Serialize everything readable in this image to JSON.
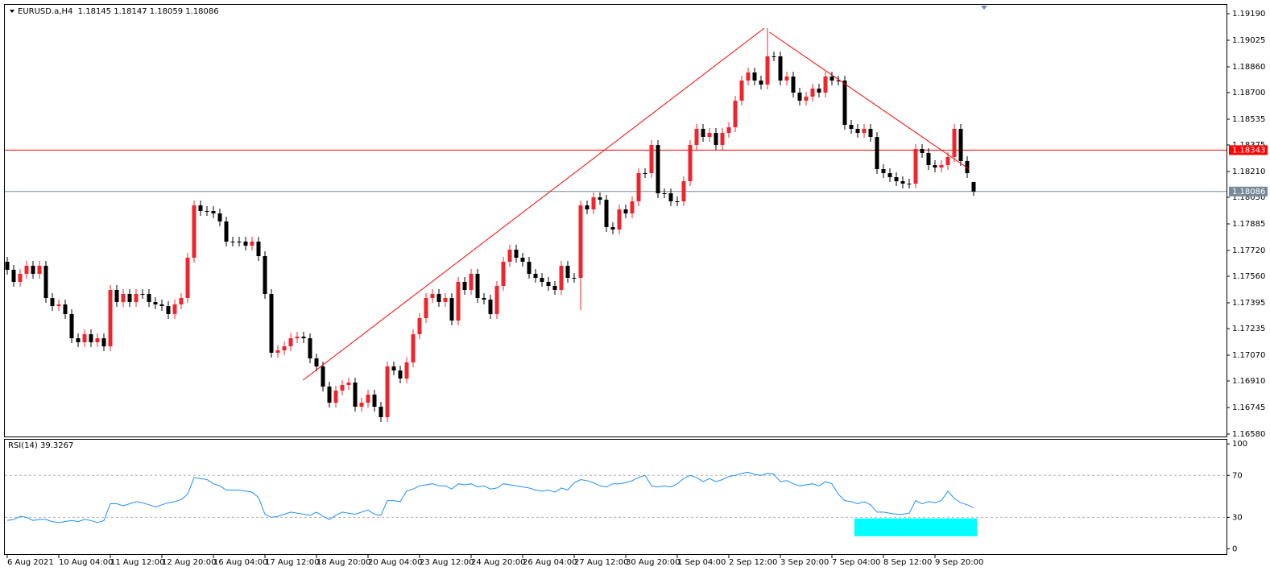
{
  "chart_data": {
    "type": "candlestick",
    "title": "EURUSD.a,H4  1.18145 1.18147 1.18059 1.18086",
    "up_color": "#f0242c",
    "down_color": "#000000",
    "open": [
      1.1765,
      1.176,
      1.17525,
      1.17575,
      1.17625,
      1.17575,
      1.17625,
      1.17425,
      1.17375,
      1.17385,
      1.17325,
      1.17175,
      1.1715,
      1.172,
      1.1715,
      1.17175,
      1.17125,
      1.17475,
      1.174,
      1.1745,
      1.174,
      1.1745,
      1.1745,
      1.174,
      1.17385,
      1.17375,
      1.17325,
      1.17385,
      1.17425,
      1.17675,
      1.18,
      1.17965,
      1.17965,
      1.1795,
      1.179,
      1.17775,
      1.17775,
      1.17775,
      1.1775,
      1.17775,
      1.17685,
      1.1745,
      1.17085,
      1.171,
      1.17125,
      1.17175,
      1.17185,
      1.17175,
      1.1705,
      1.17,
      1.16875,
      1.16775,
      1.1685,
      1.16885,
      1.169,
      1.1675,
      1.16775,
      1.16825,
      1.1675,
      1.16685,
      1.17,
      1.16975,
      1.16925,
      1.17025,
      1.172,
      1.173,
      1.17425,
      1.1745,
      1.174,
      1.17425,
      1.17285,
      1.17525,
      1.17475,
      1.17575,
      1.17425,
      1.17415,
      1.17325,
      1.175,
      1.1765,
      1.17725,
      1.17675,
      1.1765,
      1.17575,
      1.1755,
      1.17525,
      1.175,
      1.17475,
      1.17625,
      1.1755,
      1.1755,
      1.18,
      1.17975,
      1.1805,
      1.18035,
      1.17865,
      1.1785,
      1.17975,
      1.1795,
      1.18025,
      1.182,
      1.182,
      1.18375,
      1.18075,
      1.18075,
      1.18025,
      1.18025,
      1.1815,
      1.18375,
      1.18475,
      1.18425,
      1.1845,
      1.18375,
      1.1845,
      1.18485,
      1.1865,
      1.18775,
      1.18825,
      1.18775,
      1.1875,
      1.18925,
      1.18925,
      1.18775,
      1.188,
      1.187,
      1.1865,
      1.18675,
      1.18725,
      1.187,
      1.188,
      1.18775,
      1.18775,
      1.185,
      1.18475,
      1.1845,
      1.18475,
      1.18425,
      1.18225,
      1.182,
      1.18175,
      1.1815,
      1.18135,
      1.18135,
      1.1835,
      1.18325,
      1.1825,
      1.18235,
      1.1825,
      1.183,
      1.18475,
      1.18275,
      1.18145
    ],
    "high": [
      1.1768,
      1.1763,
      1.17605,
      1.17655,
      1.17655,
      1.17655,
      1.17655,
      1.17455,
      1.17415,
      1.17415,
      1.17355,
      1.17205,
      1.1723,
      1.1723,
      1.17205,
      1.17205,
      1.17505,
      1.17505,
      1.1748,
      1.1748,
      1.1748,
      1.1748,
      1.1748,
      1.1743,
      1.17415,
      1.17405,
      1.17415,
      1.17455,
      1.17705,
      1.1803,
      1.1803,
      1.17995,
      1.17995,
      1.1798,
      1.1793,
      1.17805,
      1.17805,
      1.17805,
      1.17805,
      1.17805,
      1.17715,
      1.1748,
      1.1713,
      1.17155,
      1.17205,
      1.17215,
      1.17215,
      1.17205,
      1.1708,
      1.1703,
      1.16905,
      1.1688,
      1.16915,
      1.1693,
      1.1693,
      1.16805,
      1.16855,
      1.16855,
      1.1678,
      1.1703,
      1.1703,
      1.17005,
      1.17055,
      1.1723,
      1.1733,
      1.17455,
      1.1748,
      1.1748,
      1.17455,
      1.17455,
      1.17555,
      1.17555,
      1.17605,
      1.17605,
      1.17455,
      1.17445,
      1.1753,
      1.1768,
      1.17755,
      1.17755,
      1.17705,
      1.1768,
      1.17605,
      1.1758,
      1.17555,
      1.1753,
      1.17655,
      1.17655,
      1.1758,
      1.1803,
      1.1803,
      1.1808,
      1.1808,
      1.18065,
      1.17895,
      1.18005,
      1.18005,
      1.18055,
      1.1823,
      1.1823,
      1.18405,
      1.18405,
      1.18105,
      1.18105,
      1.18055,
      1.1818,
      1.18405,
      1.18505,
      1.18505,
      1.1848,
      1.1848,
      1.1848,
      1.18515,
      1.1868,
      1.18805,
      1.18855,
      1.18855,
      1.18805,
      1.191,
      1.18955,
      1.18955,
      1.1883,
      1.1883,
      1.1873,
      1.18705,
      1.18755,
      1.18755,
      1.1883,
      1.1883,
      1.18805,
      1.18805,
      1.1853,
      1.18505,
      1.18505,
      1.18505,
      1.18455,
      1.18255,
      1.1823,
      1.18205,
      1.1818,
      1.18165,
      1.1838,
      1.1838,
      1.18355,
      1.1828,
      1.1828,
      1.1833,
      1.18505,
      1.18505,
      1.18305,
      1.18147
    ],
    "low": [
      1.1757,
      1.17495,
      1.17495,
      1.17545,
      1.17545,
      1.17545,
      1.17395,
      1.17345,
      1.17345,
      1.17295,
      1.17145,
      1.1712,
      1.1712,
      1.1712,
      1.1712,
      1.17095,
      1.17095,
      1.1737,
      1.1737,
      1.1737,
      1.1737,
      1.1742,
      1.1737,
      1.17355,
      1.17345,
      1.17295,
      1.17295,
      1.17355,
      1.17395,
      1.17645,
      1.17935,
      1.17935,
      1.1792,
      1.1787,
      1.17745,
      1.17745,
      1.17745,
      1.1772,
      1.1772,
      1.17655,
      1.1742,
      1.17055,
      1.17055,
      1.1707,
      1.17095,
      1.17145,
      1.17145,
      1.1702,
      1.1697,
      1.16845,
      1.16745,
      1.16745,
      1.1682,
      1.16855,
      1.1672,
      1.1672,
      1.16745,
      1.1672,
      1.16655,
      1.16655,
      1.16945,
      1.16895,
      1.16895,
      1.16995,
      1.1717,
      1.1727,
      1.17395,
      1.1737,
      1.1737,
      1.17255,
      1.17255,
      1.17445,
      1.17445,
      1.17395,
      1.17385,
      1.17295,
      1.17295,
      1.1747,
      1.1762,
      1.17645,
      1.1762,
      1.17545,
      1.1752,
      1.17495,
      1.1747,
      1.17445,
      1.17445,
      1.1752,
      1.1752,
      1.1735,
      1.17945,
      1.17945,
      1.18005,
      1.17835,
      1.1782,
      1.1782,
      1.1792,
      1.1792,
      1.17995,
      1.1817,
      1.1817,
      1.18045,
      1.18045,
      1.17995,
      1.17995,
      1.17995,
      1.1812,
      1.18345,
      1.18395,
      1.18395,
      1.18345,
      1.18345,
      1.1842,
      1.18455,
      1.1862,
      1.18745,
      1.18745,
      1.1872,
      1.1872,
      1.18895,
      1.18745,
      1.18745,
      1.1867,
      1.1862,
      1.1862,
      1.18645,
      1.1867,
      1.1867,
      1.18745,
      1.18745,
      1.1847,
      1.18445,
      1.1842,
      1.1842,
      1.18395,
      1.18195,
      1.1817,
      1.18145,
      1.1812,
      1.18105,
      1.18105,
      1.18105,
      1.18295,
      1.1822,
      1.18205,
      1.18205,
      1.1822,
      1.1827,
      1.18245,
      1.1817,
      1.18059
    ],
    "close": [
      1.176,
      1.17525,
      1.17575,
      1.17625,
      1.17575,
      1.17625,
      1.17425,
      1.17375,
      1.17385,
      1.17325,
      1.17175,
      1.1715,
      1.172,
      1.1715,
      1.17175,
      1.17125,
      1.17475,
      1.174,
      1.1745,
      1.174,
      1.1745,
      1.1745,
      1.174,
      1.17385,
      1.17375,
      1.17325,
      1.17385,
      1.17425,
      1.17675,
      1.18,
      1.17965,
      1.17965,
      1.1795,
      1.179,
      1.17775,
      1.17775,
      1.17775,
      1.1775,
      1.17775,
      1.17685,
      1.1745,
      1.17085,
      1.171,
      1.17125,
      1.17175,
      1.17185,
      1.17175,
      1.1705,
      1.17,
      1.16875,
      1.16775,
      1.1685,
      1.16885,
      1.169,
      1.1675,
      1.16775,
      1.16825,
      1.1675,
      1.16685,
      1.17,
      1.16975,
      1.16925,
      1.17025,
      1.172,
      1.173,
      1.17425,
      1.1745,
      1.174,
      1.17425,
      1.17285,
      1.17525,
      1.17475,
      1.17575,
      1.17425,
      1.17415,
      1.17325,
      1.175,
      1.1765,
      1.17725,
      1.17675,
      1.1765,
      1.17575,
      1.1755,
      1.17525,
      1.175,
      1.17475,
      1.17625,
      1.1755,
      1.1755,
      1.18,
      1.17975,
      1.1805,
      1.18035,
      1.17865,
      1.1785,
      1.17975,
      1.1795,
      1.18025,
      1.182,
      1.182,
      1.18375,
      1.18075,
      1.18075,
      1.18025,
      1.18025,
      1.1815,
      1.18375,
      1.18475,
      1.18425,
      1.1845,
      1.18375,
      1.1845,
      1.18485,
      1.1865,
      1.18775,
      1.18825,
      1.18775,
      1.1875,
      1.18925,
      1.18925,
      1.18775,
      1.188,
      1.187,
      1.1865,
      1.18675,
      1.18725,
      1.187,
      1.188,
      1.18775,
      1.18775,
      1.185,
      1.18475,
      1.1845,
      1.18475,
      1.18425,
      1.18225,
      1.182,
      1.18175,
      1.1815,
      1.18135,
      1.18135,
      1.1835,
      1.18325,
      1.1825,
      1.18235,
      1.1825,
      1.183,
      1.18475,
      1.18275,
      1.182,
      1.18086
    ],
    "xlim": [
      -0.5,
      189.25
    ],
    "ylim": [
      1.16565,
      1.19235
    ],
    "yticks": [
      {
        "value": 1.1919,
        "label": "1.19190"
      },
      {
        "value": 1.19025,
        "label": "1.19025"
      },
      {
        "value": 1.1886,
        "label": "1.18860"
      },
      {
        "value": 1.187,
        "label": "1.18700"
      },
      {
        "value": 1.18535,
        "label": "1.18535"
      },
      {
        "value": 1.18375,
        "label": "1.18375"
      },
      {
        "value": 1.1821,
        "label": "1.18210"
      },
      {
        "value": 1.1805,
        "label": "1.18050"
      },
      {
        "value": 1.17885,
        "label": "1.17885"
      },
      {
        "value": 1.1772,
        "label": "1.17720"
      },
      {
        "value": 1.1756,
        "label": "1.17560"
      },
      {
        "value": 1.17395,
        "label": "1.17395"
      },
      {
        "value": 1.17235,
        "label": "1.17235"
      },
      {
        "value": 1.1707,
        "label": "1.17070"
      },
      {
        "value": 1.1691,
        "label": "1.16910"
      },
      {
        "value": 1.16745,
        "label": "1.16745"
      },
      {
        "value": 1.1658,
        "label": "1.16580"
      }
    ],
    "xticks": [
      {
        "value": 0,
        "label": "6 Aug 2021"
      },
      {
        "value": 8,
        "label": "10 Aug 04:00"
      },
      {
        "value": 16,
        "label": "11 Aug 12:00"
      },
      {
        "value": 24,
        "label": "12 Aug 20:00"
      },
      {
        "value": 32,
        "label": "16 Aug 04:00"
      },
      {
        "value": 40,
        "label": "17 Aug 12:00"
      },
      {
        "value": 48,
        "label": "18 Aug 20:00"
      },
      {
        "value": 56,
        "label": "20 Aug 04:00"
      },
      {
        "value": 64,
        "label": "23 Aug 12:00"
      },
      {
        "value": 72,
        "label": "24 Aug 20:00"
      },
      {
        "value": 80,
        "label": "26 Aug 04:00"
      },
      {
        "value": 88,
        "label": "27 Aug 12:00"
      },
      {
        "value": 96,
        "label": "30 Aug 20:00"
      },
      {
        "value": 104,
        "label": "1 Sep 04:00"
      },
      {
        "value": 112,
        "label": "2 Sep 12:00"
      },
      {
        "value": 120,
        "label": "3 Sep 20:00"
      },
      {
        "value": 128,
        "label": "7 Sep 04:00"
      },
      {
        "value": 136,
        "label": "8 Sep 12:00"
      },
      {
        "value": 144,
        "label": "9 Sep 20:00"
      }
    ],
    "hlines": [
      {
        "value": 1.18343,
        "label": "1.18343",
        "color": "#ff0000"
      },
      {
        "value": 1.18086,
        "label": "1.18086",
        "color": "#778899"
      }
    ],
    "trendlines": [
      {
        "start": [
          45.9,
          1.16915
        ],
        "end": [
          117.5,
          1.191
        ],
        "color": "#ff0000"
      },
      {
        "start": [
          118.3,
          1.19075
        ],
        "end": [
          149.3,
          1.18225
        ],
        "color": "#ff0000"
      }
    ],
    "indicator": {
      "type": "line",
      "title": "RSI(14) 39.3267",
      "color": "#1e90ff",
      "ylim": [
        -5,
        104
      ],
      "yticks": [
        100,
        70,
        30,
        0
      ],
      "levels": [
        70,
        30
      ],
      "values": [
        27,
        28,
        31,
        30,
        27,
        28,
        28,
        26,
        25,
        26,
        27,
        26,
        28,
        27,
        25,
        27,
        43,
        43,
        41,
        43,
        45,
        44,
        42,
        40,
        42,
        44,
        45,
        47,
        52,
        68,
        67,
        66,
        62,
        60,
        56,
        56,
        56,
        55,
        54,
        49,
        33,
        30,
        31,
        33,
        35,
        34,
        33,
        32,
        35,
        31,
        28,
        32,
        35,
        34,
        33,
        35,
        37,
        33,
        32,
        46,
        46,
        45,
        55,
        57,
        60,
        61,
        62,
        60,
        60,
        57,
        62,
        61,
        62,
        59,
        60,
        57,
        58,
        62,
        61,
        60,
        59,
        58,
        56,
        55,
        56,
        54,
        58,
        56,
        63,
        66,
        65,
        63,
        60,
        59,
        62,
        62,
        63,
        65,
        68,
        70,
        60,
        59,
        60,
        59,
        62,
        67,
        70,
        68,
        64,
        67,
        64,
        66,
        69,
        70,
        72,
        73,
        71,
        70,
        72,
        71,
        64,
        65,
        62,
        60,
        61,
        62,
        60,
        64,
        62,
        52,
        46,
        45,
        43,
        45,
        42,
        35,
        35,
        34,
        33,
        33,
        34,
        46,
        43,
        45,
        44,
        46,
        55,
        48,
        44,
        42,
        39.3267
      ],
      "rectangle": {
        "x": [
          132,
          150
        ],
        "y": [
          12,
          29
        ],
        "color": "#00ffff"
      }
    }
  }
}
